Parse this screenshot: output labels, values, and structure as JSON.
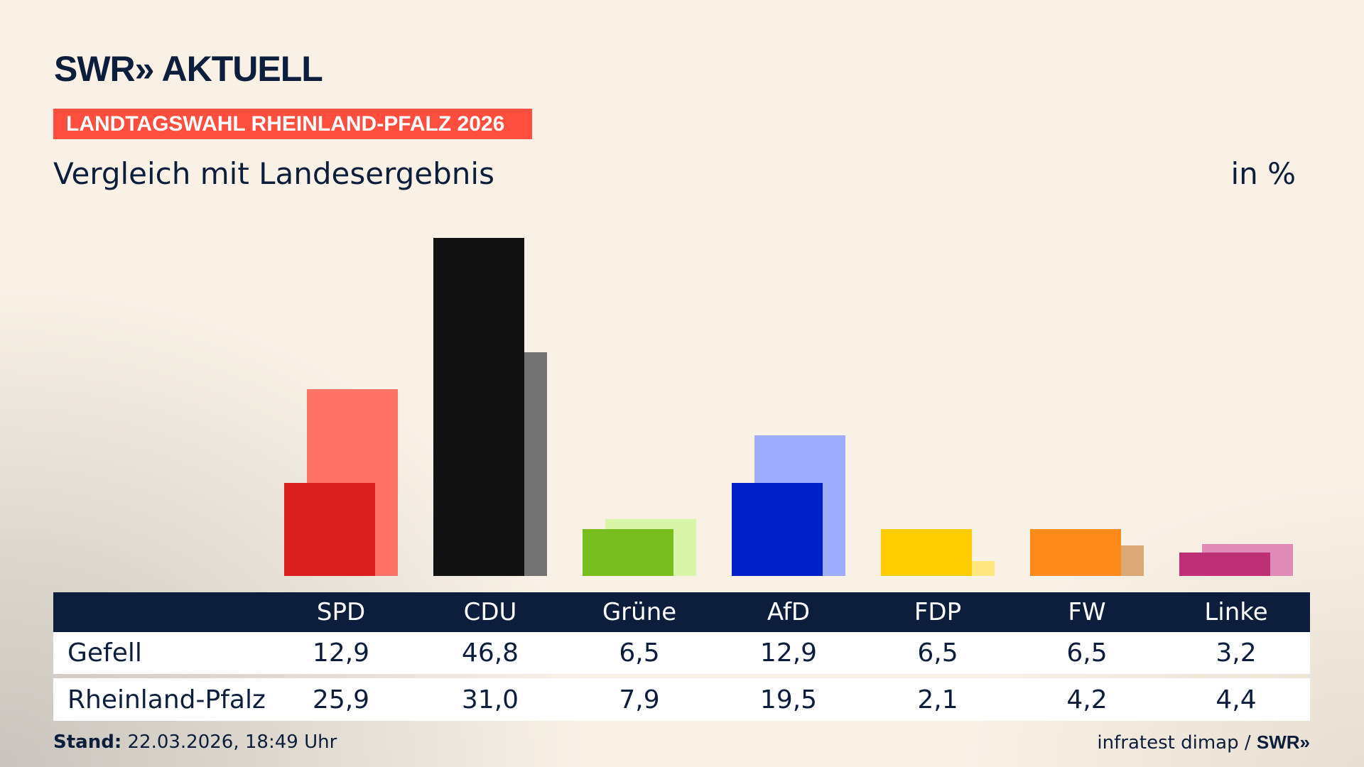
{
  "header": {
    "logo": "SWR» AKTUELL",
    "banner": "LANDTAGSWAHL RHEINLAND-PFALZ 2026",
    "subtitle": "Vergleich mit Landesergebnis",
    "unit": "in %"
  },
  "chart_data": {
    "type": "bar",
    "categories": [
      "SPD",
      "CDU",
      "Grüne",
      "AfD",
      "FDP",
      "FW",
      "Linke"
    ],
    "series": [
      {
        "name": "Gefell",
        "values": [
          12.9,
          46.8,
          6.5,
          12.9,
          6.5,
          6.5,
          3.2
        ],
        "colors": [
          "#d81e1e",
          "#121212",
          "#78be1e",
          "#0021c8",
          "#ffcc00",
          "#ff8a1c",
          "#be3075"
        ]
      },
      {
        "name": "Rheinland-Pfalz",
        "values": [
          25.9,
          31.0,
          7.9,
          19.5,
          2.1,
          4.2,
          4.4
        ],
        "colors": [
          "#ff7369",
          "#737373",
          "#d8f5a8",
          "#9eacff",
          "#ffe680",
          "#dba878",
          "#e08ab8"
        ]
      }
    ],
    "display_values": [
      [
        "12,9",
        "46,8",
        "6,5",
        "12,9",
        "6,5",
        "6,5",
        "3,2"
      ],
      [
        "25,9",
        "31,0",
        "7,9",
        "19,5",
        "2,1",
        "4,2",
        "4,4"
      ]
    ],
    "ylim": [
      0,
      46.8
    ]
  },
  "footer": {
    "stand_label": "Stand:",
    "stand_value": " 22.03.2026, 18:49 Uhr",
    "source": "infratest dimap / ",
    "source_logo": "SWR»"
  }
}
